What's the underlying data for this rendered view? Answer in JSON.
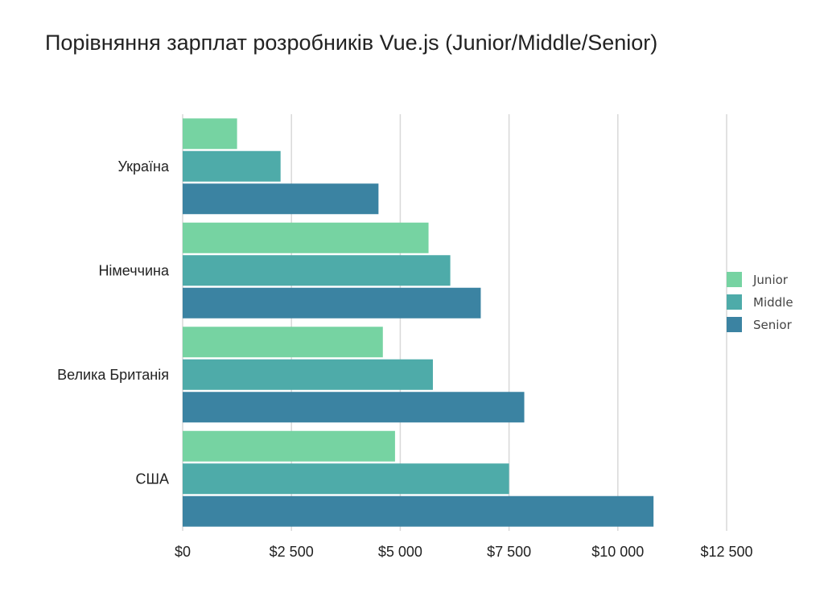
{
  "chart_data": {
    "type": "bar",
    "orientation": "horizontal",
    "title": "Порівняння зарплат розробників Vue.js (Junior/Middle/Senior)",
    "categories": [
      "Україна",
      "Німеччина",
      "Велика Британія",
      "США"
    ],
    "series": [
      {
        "name": "Junior",
        "color": "#76d3a2",
        "values": [
          1250,
          5650,
          4600,
          4880
        ]
      },
      {
        "name": "Middle",
        "color": "#4eaba9",
        "values": [
          2250,
          6150,
          5750,
          7500
        ]
      },
      {
        "name": "Senior",
        "color": "#3b83a2",
        "values": [
          4500,
          6850,
          7850,
          10820
        ]
      }
    ],
    "xlim": [
      0,
      12500
    ],
    "xticks": [
      0,
      2500,
      5000,
      7500,
      10000,
      12500
    ],
    "xtick_labels": [
      "$0",
      "$2 500",
      "$5 000",
      "$7 500",
      "$10 000",
      "$12 500"
    ],
    "grid": "vertical",
    "legend_position": "right"
  }
}
